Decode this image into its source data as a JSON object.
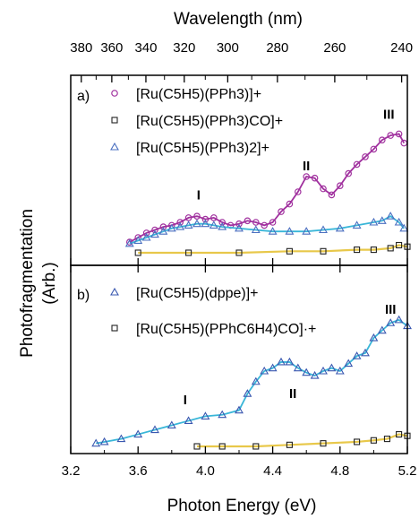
{
  "figure": {
    "top_axis_label": "Wavelength (nm)",
    "bottom_axis_label": "Photon Energy (eV)",
    "y_axis_label_line1": "Photofragmentation",
    "y_axis_label_line2": "(Arb.)"
  },
  "chart_data": [
    {
      "type": "scatter",
      "panel": "a)",
      "x_unit": "eV",
      "xlim": [
        3.2,
        5.2
      ],
      "x_ticks": [
        3.2,
        3.6,
        4.0,
        4.4,
        4.8,
        5.2
      ],
      "x_tick_labels": [
        "3.2",
        "3.6",
        "4.0",
        "4.4",
        "4.8",
        "5.2"
      ],
      "top_axis": {
        "label": "Wavelength (nm)",
        "ticks_nm": [
          380,
          360,
          340,
          320,
          300,
          280,
          260,
          240
        ],
        "tick_labels": [
          "380",
          "360",
          "340",
          "320",
          "300",
          "280",
          "260",
          "240"
        ]
      },
      "y_label": "Photofragmentation (Arb.)",
      "ylim": [
        0,
        1
      ],
      "annotations": [
        {
          "text": "I",
          "x": 3.96,
          "y": 0.35
        },
        {
          "text": "II",
          "x": 4.6,
          "y": 0.54
        },
        {
          "text": "III",
          "x": 5.09,
          "y": 0.88
        }
      ],
      "series": [
        {
          "name": "[Ru(C5H5)(PPh3)]+",
          "color": "#a0309e",
          "marker": "circle",
          "points": [
            [
              3.55,
              0.07
            ],
            [
              3.6,
              0.1
            ],
            [
              3.65,
              0.13
            ],
            [
              3.7,
              0.15
            ],
            [
              3.75,
              0.17
            ],
            [
              3.8,
              0.18
            ],
            [
              3.85,
              0.2
            ],
            [
              3.9,
              0.23
            ],
            [
              3.95,
              0.24
            ],
            [
              4.0,
              0.22
            ],
            [
              4.05,
              0.23
            ],
            [
              4.1,
              0.2
            ],
            [
              4.15,
              0.18
            ],
            [
              4.2,
              0.19
            ],
            [
              4.25,
              0.21
            ],
            [
              4.3,
              0.2
            ],
            [
              4.35,
              0.18
            ],
            [
              4.4,
              0.2
            ],
            [
              4.45,
              0.27
            ],
            [
              4.5,
              0.32
            ],
            [
              4.55,
              0.4
            ],
            [
              4.6,
              0.5
            ],
            [
              4.65,
              0.49
            ],
            [
              4.7,
              0.42
            ],
            [
              4.75,
              0.38
            ],
            [
              4.8,
              0.44
            ],
            [
              4.85,
              0.52
            ],
            [
              4.9,
              0.58
            ],
            [
              4.95,
              0.63
            ],
            [
              5.0,
              0.68
            ],
            [
              5.05,
              0.74
            ],
            [
              5.1,
              0.77
            ],
            [
              5.15,
              0.78
            ],
            [
              5.18,
              0.72
            ]
          ]
        },
        {
          "name": "[Ru(C5H5)(PPh3)CO]+",
          "color": "#222222",
          "marker": "square",
          "points": [
            [
              3.6,
              0.0
            ],
            [
              3.9,
              0.0
            ],
            [
              4.2,
              0.0
            ],
            [
              4.5,
              0.01
            ],
            [
              4.7,
              0.01
            ],
            [
              4.9,
              0.02
            ],
            [
              5.0,
              0.02
            ],
            [
              5.1,
              0.03
            ],
            [
              5.15,
              0.05
            ],
            [
              5.2,
              0.04
            ]
          ]
        },
        {
          "name": "[Ru(C5H5)(PPh3)2]+",
          "color": "#4a6fc0",
          "marker": "triangle",
          "points": [
            [
              3.55,
              0.06
            ],
            [
              3.6,
              0.08
            ],
            [
              3.65,
              0.1
            ],
            [
              3.7,
              0.12
            ],
            [
              3.75,
              0.14
            ],
            [
              3.8,
              0.16
            ],
            [
              3.85,
              0.17
            ],
            [
              3.9,
              0.18
            ],
            [
              3.95,
              0.19
            ],
            [
              4.0,
              0.19
            ],
            [
              4.05,
              0.18
            ],
            [
              4.1,
              0.17
            ],
            [
              4.2,
              0.16
            ],
            [
              4.3,
              0.15
            ],
            [
              4.4,
              0.14
            ],
            [
              4.5,
              0.14
            ],
            [
              4.6,
              0.14
            ],
            [
              4.7,
              0.15
            ],
            [
              4.8,
              0.16
            ],
            [
              4.9,
              0.18
            ],
            [
              5.0,
              0.2
            ],
            [
              5.05,
              0.21
            ],
            [
              5.1,
              0.24
            ],
            [
              5.15,
              0.2
            ],
            [
              5.18,
              0.16
            ]
          ]
        }
      ]
    },
    {
      "type": "scatter",
      "panel": "b)",
      "x_unit": "eV",
      "xlim": [
        3.2,
        5.2
      ],
      "y_label": "Photofragmentation (Arb.)",
      "ylim": [
        0,
        1
      ],
      "annotations": [
        {
          "text": "I",
          "x": 3.88,
          "y": 0.28
        },
        {
          "text": "II",
          "x": 4.52,
          "y": 0.32
        },
        {
          "text": "III",
          "x": 5.1,
          "y": 0.88
        }
      ],
      "series": [
        {
          "name": "[Ru(C5H5)(dppe)]+",
          "color": "#3a58b0",
          "marker": "triangle",
          "points": [
            [
              3.35,
              0.02
            ],
            [
              3.4,
              0.03
            ],
            [
              3.5,
              0.05
            ],
            [
              3.6,
              0.08
            ],
            [
              3.7,
              0.11
            ],
            [
              3.8,
              0.14
            ],
            [
              3.9,
              0.17
            ],
            [
              4.0,
              0.2
            ],
            [
              4.1,
              0.21
            ],
            [
              4.2,
              0.24
            ],
            [
              4.25,
              0.35
            ],
            [
              4.3,
              0.43
            ],
            [
              4.35,
              0.5
            ],
            [
              4.4,
              0.52
            ],
            [
              4.45,
              0.56
            ],
            [
              4.5,
              0.56
            ],
            [
              4.55,
              0.52
            ],
            [
              4.6,
              0.49
            ],
            [
              4.65,
              0.47
            ],
            [
              4.7,
              0.5
            ],
            [
              4.75,
              0.52
            ],
            [
              4.8,
              0.5
            ],
            [
              4.85,
              0.55
            ],
            [
              4.9,
              0.6
            ],
            [
              4.95,
              0.62
            ],
            [
              5.0,
              0.72
            ],
            [
              5.05,
              0.77
            ],
            [
              5.1,
              0.82
            ],
            [
              5.15,
              0.84
            ],
            [
              5.2,
              0.8
            ]
          ]
        },
        {
          "name": "[Ru(C5H5)(PPhC6H4)CO]·+",
          "color": "#222222",
          "marker": "square",
          "points": [
            [
              3.95,
              0.0
            ],
            [
              4.1,
              0.0
            ],
            [
              4.3,
              0.0
            ],
            [
              4.5,
              0.01
            ],
            [
              4.7,
              0.02
            ],
            [
              4.9,
              0.03
            ],
            [
              5.0,
              0.04
            ],
            [
              5.08,
              0.05
            ],
            [
              5.15,
              0.08
            ],
            [
              5.2,
              0.07
            ]
          ]
        }
      ]
    }
  ]
}
